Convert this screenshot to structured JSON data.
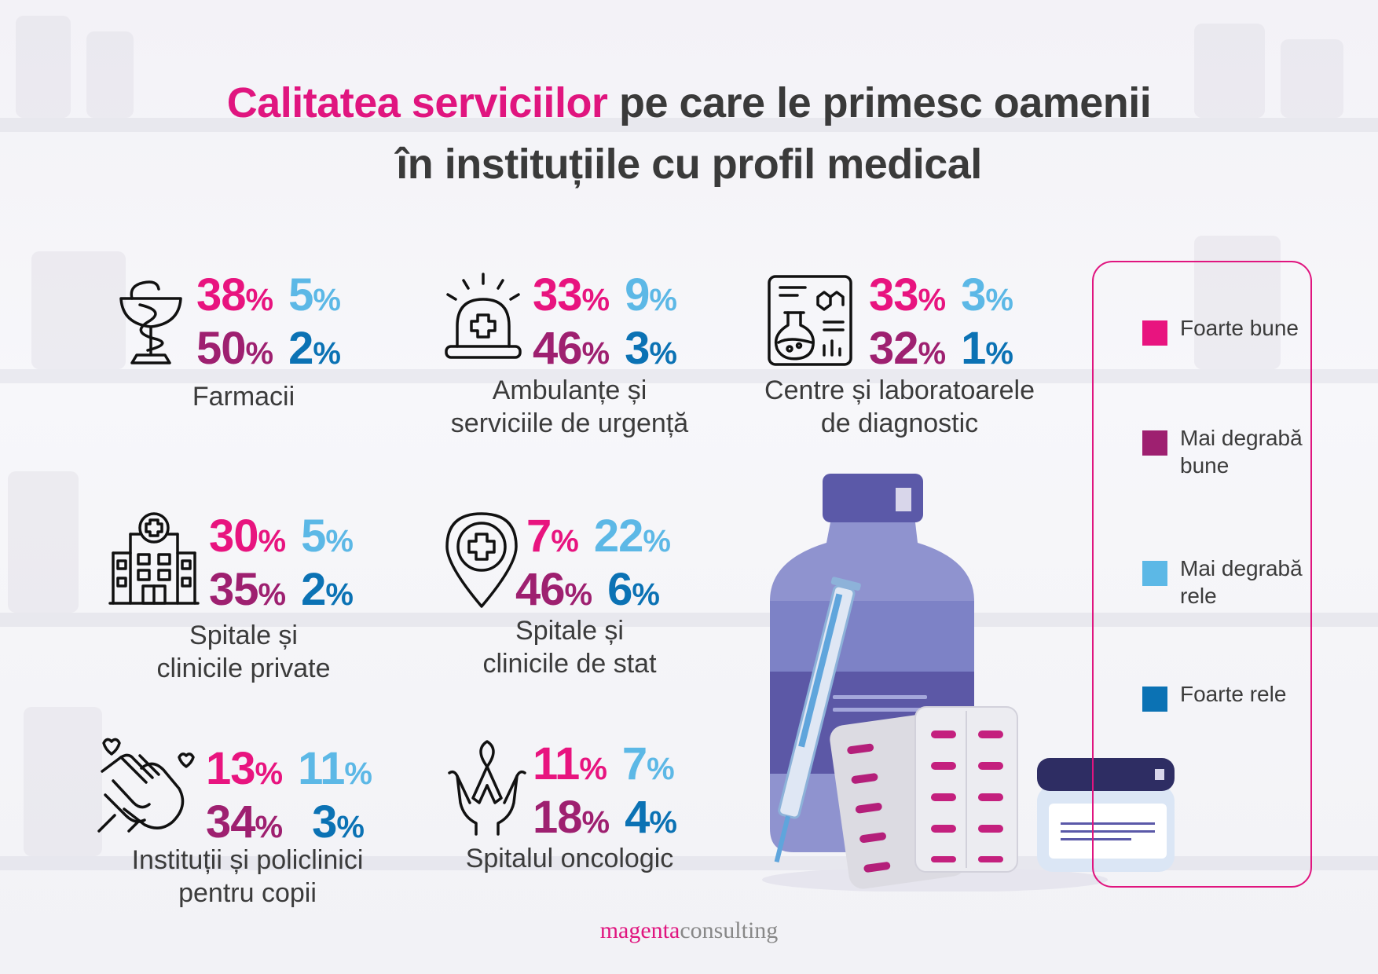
{
  "title": {
    "accent": "Calitatea serviciilor",
    "rest_line1": " pe care le primesc oamenii",
    "line2": "în instituțiile cu profil medical"
  },
  "colors": {
    "foarte_bune": "#e8147f",
    "mai_degraba_bune": "#9e2070",
    "mai_degraba_rele": "#5cb8e6",
    "foarte_rele": "#0b72b4",
    "frame": "#e0157f"
  },
  "stats": [
    {
      "icon": "pharmacy-icon",
      "label_l1": "Farmacii",
      "label_l2": "",
      "foarte_bune": "38",
      "mai_degraba_rele": "5",
      "mai_degraba_bune": "50",
      "foarte_rele": "2"
    },
    {
      "icon": "ambulance-siren-icon",
      "label_l1": "Ambulanțe și",
      "label_l2": "serviciile de urgență",
      "foarte_bune": "33",
      "mai_degraba_rele": "9",
      "mai_degraba_bune": "46",
      "foarte_rele": "3"
    },
    {
      "icon": "laboratory-icon",
      "label_l1": "Centre și laboratoarele",
      "label_l2": "de diagnostic",
      "foarte_bune": "33",
      "mai_degraba_rele": "3",
      "mai_degraba_bune": "32",
      "foarte_rele": "1"
    },
    {
      "icon": "hospital-building-icon",
      "label_l1": "Spitale și",
      "label_l2": "clinicile private",
      "foarte_bune": "30",
      "mai_degraba_rele": "5",
      "mai_degraba_bune": "35",
      "foarte_rele": "2"
    },
    {
      "icon": "location-pin-medical-icon",
      "label_l1": "Spitale și",
      "label_l2": "clinicile de stat",
      "foarte_bune": "7",
      "mai_degraba_rele": "22",
      "mai_degraba_bune": "46",
      "foarte_rele": "6"
    },
    {
      "icon": "child-care-hands-icon",
      "label_l1": "Instituții și policlinici",
      "label_l2": "pentru copii",
      "foarte_bune": "13",
      "mai_degraba_rele": "11",
      "mai_degraba_bune": "34",
      "foarte_rele": "3"
    },
    {
      "icon": "cancer-ribbon-hands-icon",
      "label_l1": "Spitalul oncologic",
      "label_l2": "",
      "foarte_bune": "11",
      "mai_degraba_rele": "7",
      "mai_degraba_bune": "18",
      "foarte_rele": "4"
    }
  ],
  "percent_sign": "%",
  "legend": [
    {
      "text": "Foarte bune",
      "color": "#e8147f"
    },
    {
      "text": "Mai degrabă bune",
      "color": "#9e2070"
    },
    {
      "text": "Mai degrabă rele",
      "color": "#5cb8e6"
    },
    {
      "text": "Foarte rele",
      "color": "#0b72b4"
    }
  ],
  "footer": {
    "brand": "magenta",
    "suffix": "consulting"
  }
}
